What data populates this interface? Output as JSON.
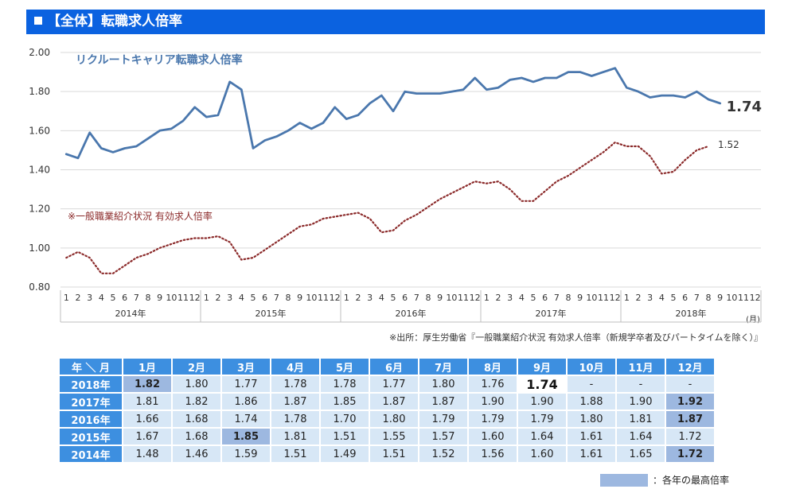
{
  "header": {
    "title": "【全体】転職求人倍率"
  },
  "chart_data": {
    "type": "line",
    "y_ticks": [
      "2.00",
      "1.80",
      "1.60",
      "1.40",
      "1.20",
      "1.00",
      "0.80"
    ],
    "ylim": [
      0.8,
      2.0
    ],
    "month_unit": "(月)",
    "month_labels": [
      "1",
      "2",
      "3",
      "4",
      "5",
      "6",
      "7",
      "8",
      "9",
      "10",
      "11",
      "12"
    ],
    "years": [
      "2014年",
      "2015年",
      "2016年",
      "2017年",
      "2018年"
    ],
    "x_count": 60,
    "series": [
      {
        "name": "リクルートキャリア転職求人倍率",
        "style": "solid",
        "color": "#4a77ad",
        "values": [
          1.48,
          1.46,
          1.59,
          1.51,
          1.49,
          1.51,
          1.52,
          1.56,
          1.6,
          1.61,
          1.65,
          1.72,
          1.67,
          1.68,
          1.85,
          1.81,
          1.51,
          1.55,
          1.57,
          1.6,
          1.64,
          1.61,
          1.64,
          1.72,
          1.66,
          1.68,
          1.74,
          1.78,
          1.7,
          1.8,
          1.79,
          1.79,
          1.79,
          1.8,
          1.81,
          1.87,
          1.81,
          1.82,
          1.86,
          1.87,
          1.85,
          1.87,
          1.87,
          1.9,
          1.9,
          1.88,
          1.9,
          1.92,
          1.82,
          1.8,
          1.77,
          1.78,
          1.78,
          1.77,
          1.8,
          1.76,
          1.74
        ],
        "end_label": "1.74"
      },
      {
        "name": "※一般職業紹介状況 有効求人倍率",
        "style": "dotted",
        "color": "#8b2a2a",
        "values": [
          0.95,
          0.98,
          0.95,
          0.87,
          0.87,
          0.91,
          0.95,
          0.97,
          1.0,
          1.02,
          1.04,
          1.05,
          1.05,
          1.06,
          1.03,
          0.94,
          0.95,
          0.99,
          1.03,
          1.07,
          1.11,
          1.12,
          1.15,
          1.16,
          1.17,
          1.18,
          1.15,
          1.08,
          1.09,
          1.14,
          1.17,
          1.21,
          1.25,
          1.28,
          1.31,
          1.34,
          1.33,
          1.34,
          1.3,
          1.24,
          1.24,
          1.29,
          1.34,
          1.37,
          1.41,
          1.45,
          1.49,
          1.54,
          1.52,
          1.52,
          1.47,
          1.38,
          1.39,
          1.45,
          1.5,
          1.52
        ],
        "end_label": "1.52"
      }
    ]
  },
  "source": "※出所：厚生労働省『一般職業紹介状況 有効求人倍率（新規学卒者及びパートタイムを除く）』",
  "table": {
    "corner": "年 ＼ 月",
    "months": [
      "1月",
      "2月",
      "3月",
      "4月",
      "5月",
      "6月",
      "7月",
      "8月",
      "9月",
      "10月",
      "11月",
      "12月"
    ],
    "rows": [
      {
        "year": "2018年",
        "values": [
          "1.82",
          "1.80",
          "1.77",
          "1.78",
          "1.78",
          "1.77",
          "1.80",
          "1.76",
          "1.74",
          "-",
          "-",
          "-"
        ],
        "max_index": 0,
        "latest_index": 8
      },
      {
        "year": "2017年",
        "values": [
          "1.81",
          "1.82",
          "1.86",
          "1.87",
          "1.85",
          "1.87",
          "1.87",
          "1.90",
          "1.90",
          "1.88",
          "1.90",
          "1.92"
        ],
        "max_index": 11
      },
      {
        "year": "2016年",
        "values": [
          "1.66",
          "1.68",
          "1.74",
          "1.78",
          "1.70",
          "1.80",
          "1.79",
          "1.79",
          "1.79",
          "1.80",
          "1.81",
          "1.87"
        ],
        "max_index": 11
      },
      {
        "year": "2015年",
        "values": [
          "1.67",
          "1.68",
          "1.85",
          "1.81",
          "1.51",
          "1.55",
          "1.57",
          "1.60",
          "1.64",
          "1.61",
          "1.64",
          "1.72"
        ],
        "max_index": 2
      },
      {
        "year": "2014年",
        "values": [
          "1.48",
          "1.46",
          "1.59",
          "1.51",
          "1.49",
          "1.51",
          "1.52",
          "1.56",
          "1.60",
          "1.61",
          "1.65",
          "1.72"
        ],
        "max_index": 11
      }
    ]
  },
  "legend": {
    "label": "：各年の最高倍率"
  }
}
